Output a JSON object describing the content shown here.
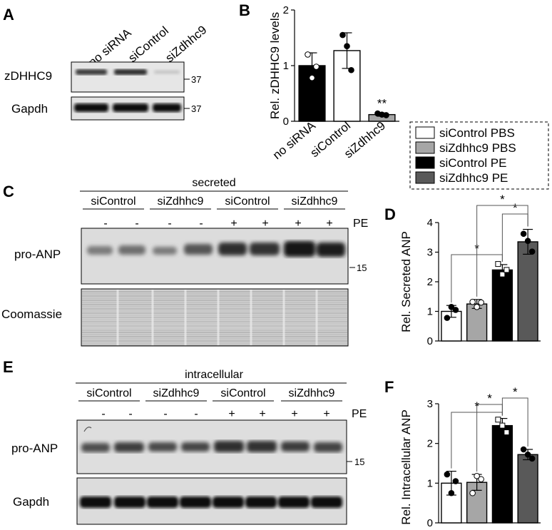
{
  "panels": {
    "A": {
      "label": "A",
      "lanes": [
        "no siRNA",
        "siControl",
        "siZdhhc9"
      ],
      "rows": [
        "zDHHC9",
        "Gapdh"
      ],
      "markers": [
        "37",
        "37"
      ]
    },
    "B": {
      "label": "B"
    },
    "C": {
      "label": "C",
      "header": "secreted",
      "groups": [
        "siControl",
        "siZdhhc9",
        "siControl",
        "siZdhhc9"
      ],
      "treatment_label": "PE",
      "signs": [
        "-",
        "-",
        "-",
        "-",
        "+",
        "+",
        "+",
        "+"
      ],
      "rows": [
        "pro-ANP",
        "Coomassie"
      ],
      "marker": "15"
    },
    "D": {
      "label": "D"
    },
    "E": {
      "label": "E",
      "header": "intracellular",
      "groups": [
        "siControl",
        "siZdhhc9",
        "siControl",
        "siZdhhc9"
      ],
      "treatment_label": "PE",
      "signs": [
        "-",
        "-",
        "-",
        "-",
        "+",
        "+",
        "+",
        "+"
      ],
      "rows": [
        "pro-ANP",
        "Gapdh"
      ],
      "marker": "15"
    },
    "F": {
      "label": "F"
    }
  },
  "legend": [
    {
      "label": "siControl PBS",
      "color": "#ffffff"
    },
    {
      "label": "siZdhhc9 PBS",
      "color": "#a6a6a6"
    },
    {
      "label": "siControl PE",
      "color": "#000000"
    },
    {
      "label": "siZdhhc9 PE",
      "color": "#595959"
    }
  ],
  "significance": {
    "single": "*",
    "double": "**"
  },
  "chart_data": [
    {
      "id": "B",
      "type": "bar",
      "categories": [
        "no siRNA",
        "siControl",
        "siZdhhc9"
      ],
      "values": [
        1.0,
        1.27,
        0.12
      ],
      "errors": [
        0.23,
        0.32,
        0.03
      ],
      "points": [
        [
          1.2,
          0.78,
          0.98
        ],
        [
          1.55,
          1.35,
          0.92
        ],
        [
          0.14,
          0.12,
          0.11
        ]
      ],
      "colors": [
        "#000000",
        "#ffffff",
        "#a6a6a6"
      ],
      "point_colors": [
        "#ffffff",
        "#000000",
        "#000000"
      ],
      "ylabel": "Rel. zDHHC9 levels",
      "ylim": [
        0,
        2
      ],
      "yticks": [
        "0",
        "1",
        "2"
      ],
      "annotations": [
        {
          "category": "siZdhhc9",
          "text": "**"
        }
      ]
    },
    {
      "id": "D",
      "type": "bar",
      "categories": [
        "siControl PBS",
        "siZdhhc9 PBS",
        "siControl PE",
        "siZdhhc9 PE"
      ],
      "values": [
        1.0,
        1.25,
        2.4,
        3.35
      ],
      "errors": [
        0.2,
        0.15,
        0.18,
        0.42
      ],
      "points": [
        [
          0.78,
          1.15,
          1.05
        ],
        [
          1.32,
          1.15,
          1.3
        ],
        [
          2.6,
          2.25,
          2.4
        ],
        [
          3.62,
          3.38,
          3.02
        ]
      ],
      "colors": [
        "#ffffff",
        "#a6a6a6",
        "#000000",
        "#595959"
      ],
      "point_colors": [
        "#000000",
        "#ffffff",
        "#ffffff",
        "#000000"
      ],
      "ylabel": "Rel.  Secreted ANP",
      "ylim": [
        0,
        4
      ],
      "yticks": [
        "0",
        "1",
        "2",
        "3",
        "4"
      ],
      "comparisons": [
        {
          "from": 0,
          "to": 2,
          "text": "*"
        },
        {
          "from": 2,
          "to": 3,
          "text": "*"
        },
        {
          "from": 1,
          "to": 3,
          "text": "*"
        }
      ]
    },
    {
      "id": "F",
      "type": "bar",
      "categories": [
        "siControl PBS",
        "siZdhhc9 PBS",
        "siControl PE",
        "siZdhhc9 PE"
      ],
      "values": [
        1.0,
        1.02,
        2.45,
        1.72
      ],
      "errors": [
        0.3,
        0.2,
        0.18,
        0.13
      ],
      "points": [
        [
          1.22,
          0.75,
          1.05
        ],
        [
          0.75,
          1.18,
          1.1
        ],
        [
          2.6,
          2.45,
          2.28
        ],
        [
          1.85,
          1.72,
          1.62
        ]
      ],
      "colors": [
        "#ffffff",
        "#a6a6a6",
        "#000000",
        "#595959"
      ],
      "point_colors": [
        "#000000",
        "#ffffff",
        "#ffffff",
        "#000000"
      ],
      "ylabel": "Rel.  Intracellular ANP",
      "ylim": [
        0,
        3
      ],
      "yticks": [
        "0",
        "1",
        "2",
        "3"
      ],
      "comparisons": [
        {
          "from": 0,
          "to": 2,
          "text": "*"
        },
        {
          "from": 1,
          "to": 2,
          "text": "*"
        },
        {
          "from": 2,
          "to": 3,
          "text": "*"
        }
      ]
    }
  ]
}
